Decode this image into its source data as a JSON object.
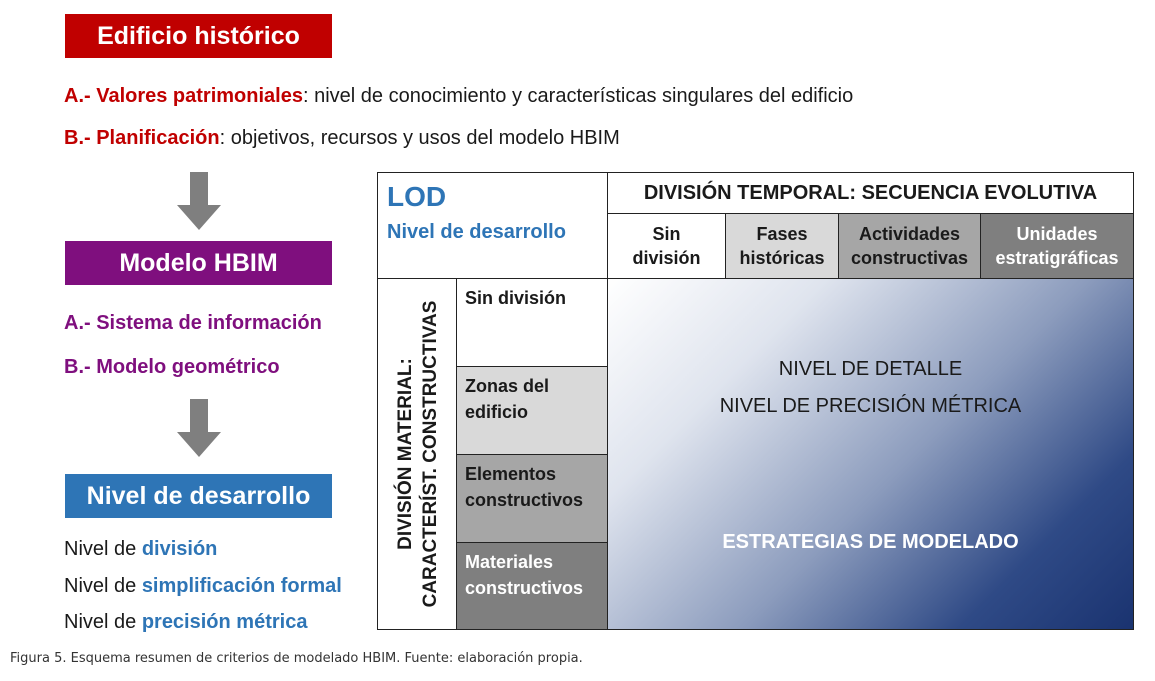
{
  "colors": {
    "red": "#c00000",
    "purple": "#7f0f7e",
    "blue": "#2e75b6",
    "arrow": "#7f7f7f"
  },
  "left": {
    "box1": "Edificio histórico",
    "line_a": {
      "label": "A.- Valores patrimoniales",
      "rest": ": nivel de conocimiento y características singulares del edificio"
    },
    "line_b": {
      "label": "B.- Planificación",
      "rest": ": objetivos, recursos y usos del modelo HBIM"
    },
    "box2": "Modelo HBIM",
    "item_a": "A.- Sistema de información",
    "item_b": "B.- Modelo geométrico",
    "box3": "Nivel de desarrollo",
    "levels": [
      {
        "prefix": "Nivel de ",
        "highlight": "división"
      },
      {
        "prefix": "Nivel de ",
        "highlight": "simplificación formal"
      },
      {
        "prefix": "Nivel de ",
        "highlight": "precisión métrica"
      }
    ]
  },
  "table": {
    "lod": "LOD",
    "lod_sub": "Nivel de desarrollo",
    "temporal_header": "DIVISIÓN TEMPORAL: SECUENCIA EVOLUTIVA",
    "columns": [
      {
        "l1": "Sin",
        "l2": "división"
      },
      {
        "l1": "Fases",
        "l2": "históricas"
      },
      {
        "l1": "Actividades",
        "l2": "constructivas"
      },
      {
        "l1": "Unidades",
        "l2": "estratigráficas"
      }
    ],
    "vertical_l1": "DIVISIÓN MATERIAL:",
    "vertical_l2": "CARACTERÍST. CONSTRUCTIVAS",
    "rows": [
      {
        "l1": "Sin división",
        "l2": ""
      },
      {
        "l1": "Zonas del",
        "l2": "edificio"
      },
      {
        "l1": "Elementos",
        "l2": "constructivos"
      },
      {
        "l1": "Materiales",
        "l2": "constructivos"
      }
    ],
    "body_line1": "NIVEL DE DETALLE",
    "body_line2": "NIVEL DE PRECISIÓN MÉTRICA",
    "body_line3": "ESTRATEGIAS DE MODELADO"
  },
  "caption": "Figura 5. Esquema resumen de criterios de modelado HBIM. Fuente: elaboración propia."
}
